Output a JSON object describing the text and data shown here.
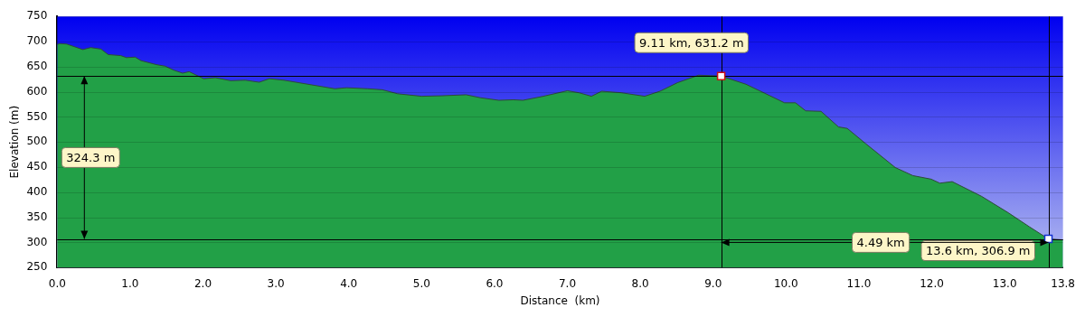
{
  "chart_data": {
    "type": "area",
    "xlabel": "Distance  (km)",
    "ylabel": "Elevation (m)",
    "x": [
      0,
      0.03,
      0.13,
      0.35,
      0.46,
      0.6,
      0.7,
      0.87,
      0.95,
      1.07,
      1.15,
      1.36,
      1.48,
      1.6,
      1.72,
      1.81,
      2.01,
      2.17,
      2.38,
      2.58,
      2.77,
      2.91,
      3.11,
      3.52,
      3.81,
      3.97,
      4.26,
      4.46,
      4.67,
      5.0,
      5.28,
      5.61,
      5.81,
      6.06,
      6.26,
      6.39,
      6.67,
      7.0,
      7.16,
      7.33,
      7.47,
      7.74,
      8.06,
      8.27,
      8.51,
      8.8,
      8.96,
      9.11,
      9.45,
      9.78,
      9.98,
      10.13,
      10.27,
      10.48,
      10.72,
      10.84,
      11.09,
      11.5,
      11.74,
      11.99,
      12.11,
      12.28,
      12.68,
      13.05,
      13.34,
      13.6,
      13.8
    ],
    "series": [
      {
        "color": "#22a047",
        "values": [
          694,
          696,
          695,
          684,
          688,
          685,
          674,
          672,
          668,
          669,
          662,
          654,
          651,
          643,
          637,
          640,
          626,
          628,
          622,
          623,
          619,
          626,
          623,
          613,
          606,
          608,
          606,
          604,
          596,
          591,
          592,
          594,
          588,
          583,
          584,
          583,
          591,
          602,
          598,
          591,
          601,
          598,
          591,
          601,
          618,
          633,
          632,
          631.2,
          615,
          592,
          578,
          578,
          562,
          561,
          530,
          527,
          497,
          449,
          433,
          426,
          418,
          421,
          392,
          359,
          331,
          306.9,
          305
        ]
      }
    ],
    "xlim": [
      0,
      13.8
    ],
    "ylim": [
      250,
      750
    ],
    "xticks": [
      {
        "value": 0,
        "label": "0.0"
      },
      {
        "value": 1,
        "label": "1.0"
      },
      {
        "value": 2,
        "label": "2.0"
      },
      {
        "value": 3,
        "label": "3.0"
      },
      {
        "value": 4,
        "label": "4.0"
      },
      {
        "value": 5,
        "label": "5.0"
      },
      {
        "value": 6,
        "label": "6.0"
      },
      {
        "value": 7,
        "label": "7.0"
      },
      {
        "value": 8,
        "label": "8.0"
      },
      {
        "value": 9,
        "label": "9.0"
      },
      {
        "value": 10,
        "label": "10.0"
      },
      {
        "value": 11,
        "label": "11.0"
      },
      {
        "value": 12,
        "label": "12.0"
      },
      {
        "value": 13,
        "label": "13.0"
      },
      {
        "value": 13.8,
        "label": "13.8"
      }
    ],
    "yticks": [
      250,
      300,
      350,
      400,
      450,
      500,
      550,
      600,
      650,
      700,
      750
    ],
    "grid": "y",
    "legend": false,
    "marker": "none",
    "ref_lines": [
      {
        "axis": "y",
        "value": 631.2,
        "color": "#000000"
      },
      {
        "axis": "y",
        "value": 306.9,
        "color": "#000000"
      },
      {
        "axis": "x",
        "value": 9.11,
        "color": "#000000"
      },
      {
        "axis": "x",
        "value": 13.6,
        "color": "#000000"
      }
    ],
    "annotations": [
      {
        "text": "9.11 km, 631.2 m",
        "x": 9.11,
        "y": 631.2
      },
      {
        "text": "13.6 km, 306.9 m",
        "x": 13.6,
        "y": 306.9
      },
      "324.3 m",
      {
        "text": "4.49 km",
        "x": 11.3,
        "y": 300
      }
    ]
  }
}
